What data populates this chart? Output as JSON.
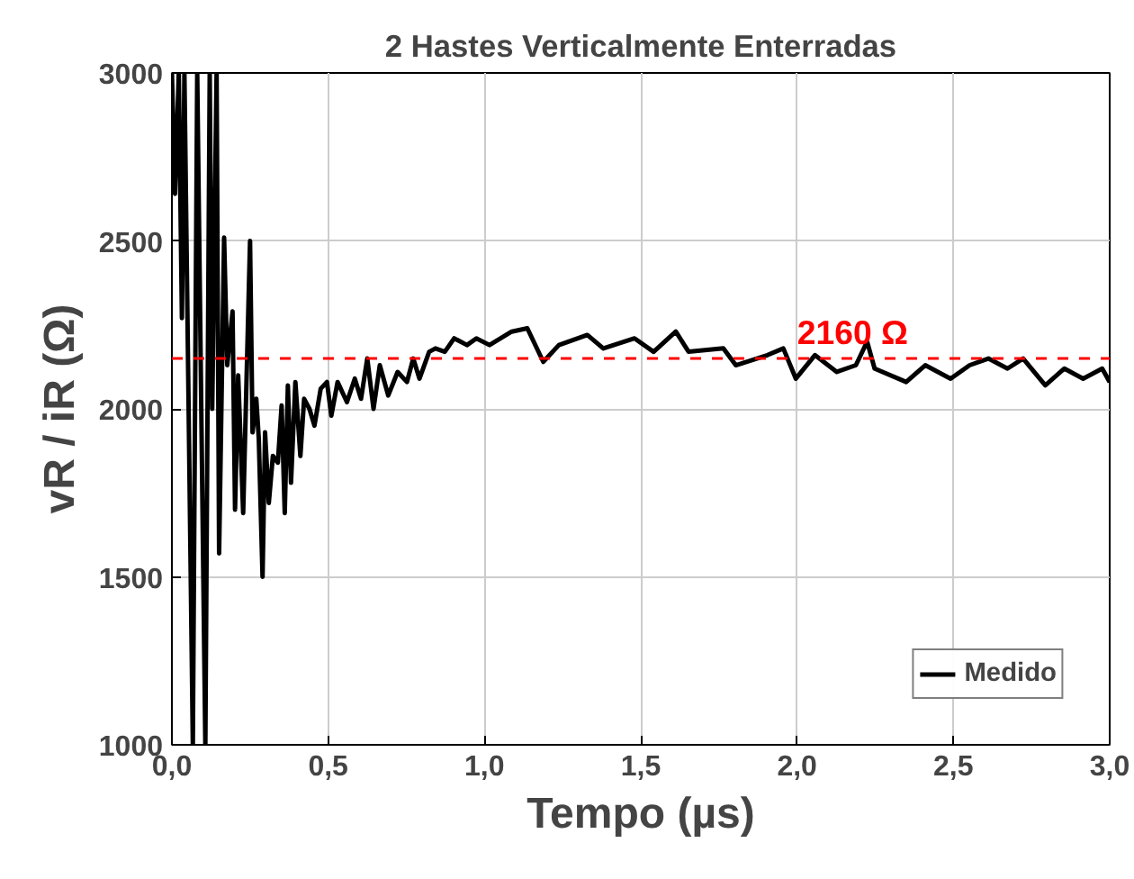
{
  "chart_data": {
    "type": "line",
    "title": "2 Hastes Verticalmente Enterradas",
    "xlabel": "Tempo (µs)",
    "ylabel": "vR / iR (Ω)",
    "xlim": [
      0,
      3
    ],
    "ylim": [
      1000,
      3000
    ],
    "xticks": [
      {
        "value": 0,
        "label": "0,0"
      },
      {
        "value": 0.5,
        "label": "0,5"
      },
      {
        "value": 1,
        "label": "1,0"
      },
      {
        "value": 1.5,
        "label": "1,5"
      },
      {
        "value": 2,
        "label": "2,0"
      },
      {
        "value": 2.5,
        "label": "2,5"
      },
      {
        "value": 3,
        "label": "3,0"
      }
    ],
    "yticks": [
      1000,
      1500,
      2000,
      2500,
      3000
    ],
    "grid": true,
    "legend": "bottom right",
    "marker": "none",
    "line_style": "solid",
    "ref_lines": [
      {
        "axis": "y",
        "value": 2150,
        "label": "2160 Ω",
        "color": "#ff0000",
        "line_style": "dashed"
      }
    ],
    "series": [
      {
        "name": "Medido",
        "color": "#000000",
        "x": [
          0,
          0.01,
          0.022,
          0.032,
          0.04,
          0.067,
          0.081,
          0.107,
          0.121,
          0.129,
          0.143,
          0.151,
          0.167,
          0.177,
          0.194,
          0.202,
          0.212,
          0.228,
          0.25,
          0.258,
          0.27,
          0.278,
          0.29,
          0.298,
          0.31,
          0.323,
          0.339,
          0.351,
          0.361,
          0.371,
          0.381,
          0.395,
          0.411,
          0.423,
          0.44,
          0.456,
          0.476,
          0.496,
          0.51,
          0.53,
          0.56,
          0.585,
          0.605,
          0.625,
          0.645,
          0.665,
          0.692,
          0.722,
          0.752,
          0.772,
          0.792,
          0.823,
          0.843,
          0.873,
          0.903,
          0.944,
          0.974,
          1.016,
          1.087,
          1.137,
          1.188,
          1.238,
          1.329,
          1.38,
          1.48,
          1.541,
          1.612,
          1.653,
          1.764,
          1.804,
          1.905,
          1.956,
          1.996,
          2.057,
          2.127,
          2.188,
          2.224,
          2.248,
          2.349,
          2.41,
          2.491,
          2.552,
          2.612,
          2.673,
          2.723,
          2.794,
          2.855,
          2.915,
          2.976,
          3.0
        ],
        "values": [
          3000,
          2640,
          3000,
          2270,
          3000,
          1000,
          3000,
          1000,
          3000,
          2000,
          3000,
          1570,
          2510,
          2130,
          2290,
          1700,
          2100,
          1690,
          2500,
          1930,
          2030,
          1910,
          1500,
          1930,
          1720,
          1860,
          1840,
          2010,
          1690,
          2070,
          1780,
          2080,
          1860,
          2030,
          2000,
          1950,
          2060,
          2080,
          1980,
          2080,
          2020,
          2090,
          2030,
          2150,
          2000,
          2130,
          2040,
          2110,
          2080,
          2150,
          2090,
          2170,
          2180,
          2170,
          2210,
          2190,
          2210,
          2190,
          2230,
          2240,
          2140,
          2190,
          2220,
          2180,
          2210,
          2170,
          2230,
          2170,
          2180,
          2130,
          2160,
          2180,
          2090,
          2160,
          2110,
          2130,
          2200,
          2120,
          2080,
          2130,
          2090,
          2130,
          2150,
          2120,
          2150,
          2070,
          2120,
          2090,
          2120,
          2080
        ]
      }
    ]
  }
}
